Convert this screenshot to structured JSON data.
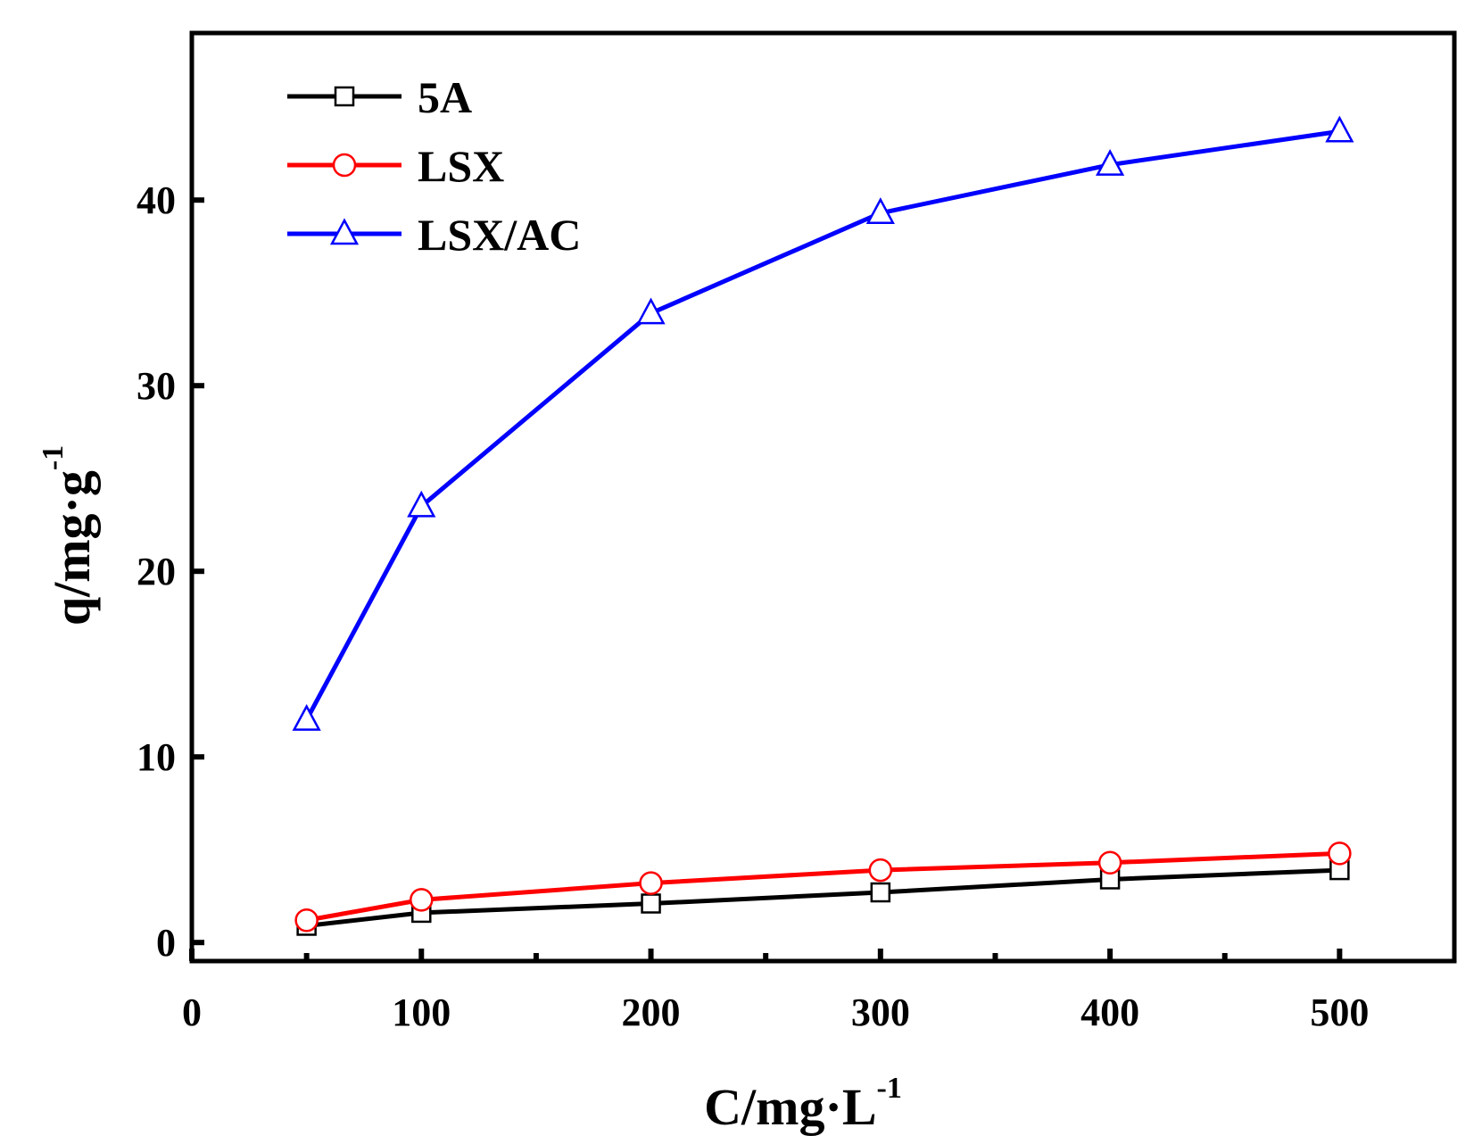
{
  "chart_data": {
    "type": "line",
    "title": "",
    "xlabel": "C/mg·L",
    "xlabel_sup": "-1",
    "ylabel": "q/mg·g",
    "ylabel_sup": "-1",
    "xlim": [
      0,
      550
    ],
    "ylim": [
      -1,
      49
    ],
    "x_ticks": [
      0,
      100,
      200,
      300,
      400,
      500
    ],
    "x_minor_ticks": [
      50,
      150,
      250,
      350,
      450
    ],
    "y_ticks": [
      0,
      10,
      20,
      30,
      40
    ],
    "legend_position": "top-left",
    "grid": false,
    "x": [
      50,
      100,
      200,
      300,
      400,
      500
    ],
    "series": [
      {
        "name": "5A",
        "color": "#000000",
        "marker": "square",
        "values": [
          0.9,
          1.6,
          2.1,
          2.7,
          3.4,
          3.9
        ]
      },
      {
        "name": "LSX",
        "color": "#ff0000",
        "marker": "circle",
        "values": [
          1.2,
          2.3,
          3.2,
          3.9,
          4.3,
          4.8
        ]
      },
      {
        "name": "LSX/AC",
        "color": "#0000ff",
        "marker": "triangle",
        "values": [
          12.0,
          23.5,
          33.9,
          39.3,
          41.9,
          43.7
        ]
      }
    ]
  }
}
